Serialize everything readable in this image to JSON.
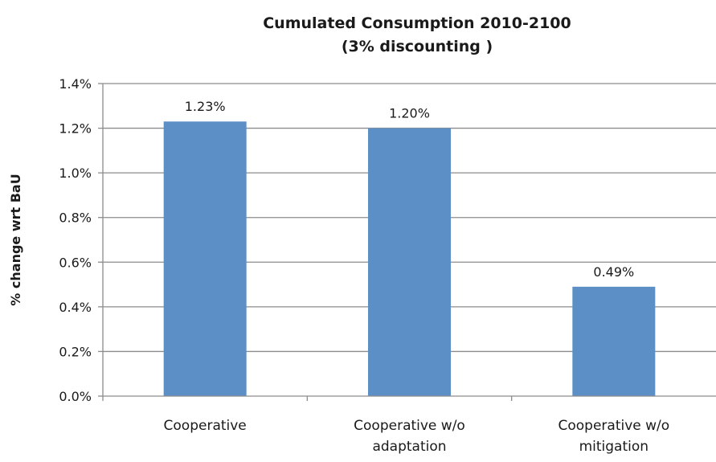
{
  "chart_data": {
    "type": "bar",
    "title": [
      "Cumulated Consumption 2010-2100",
      "(3% discounting )"
    ],
    "xlabel": "",
    "ylabel": "% change wrt BaU",
    "ylim": [
      0,
      1.4
    ],
    "yticks": [
      0.0,
      0.2,
      0.4,
      0.6,
      0.8,
      1.0,
      1.2,
      1.4
    ],
    "ytick_labels": [
      "0.0%",
      "0.2%",
      "0.4%",
      "0.6%",
      "0.8%",
      "1.0%",
      "1.2%",
      "1.4%"
    ],
    "categories": [
      [
        "Cooperative"
      ],
      [
        "Cooperative w/o",
        "adaptation"
      ],
      [
        "Cooperative w/o",
        "mitigation"
      ]
    ],
    "values": [
      1.23,
      1.2,
      0.49
    ],
    "data_labels": [
      "1.23%",
      "1.20%",
      "0.49%"
    ],
    "grid": true,
    "legend": "none",
    "colors": {
      "bar": "#5b8fc6",
      "grid": "#8c8c8c",
      "axis": "#8c8c8c"
    }
  }
}
